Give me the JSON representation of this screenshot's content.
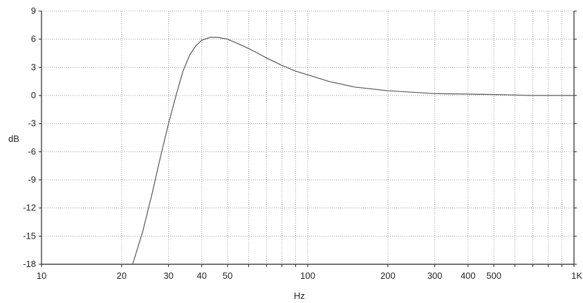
{
  "chart_data": {
    "type": "line",
    "xscale": "log",
    "xlabel": "Hz",
    "ylabel": "dB",
    "xlim": [
      10,
      1000
    ],
    "ylim": [
      -18,
      9
    ],
    "grid": true,
    "x_ticks": [
      {
        "value": 10,
        "label": "10"
      },
      {
        "value": 20,
        "label": "20"
      },
      {
        "value": 30,
        "label": "30"
      },
      {
        "value": 40,
        "label": "40"
      },
      {
        "value": 50,
        "label": "50"
      },
      {
        "value": 100,
        "label": "100"
      },
      {
        "value": 200,
        "label": "200"
      },
      {
        "value": 300,
        "label": "300"
      },
      {
        "value": 400,
        "label": "400"
      },
      {
        "value": 500,
        "label": "500"
      },
      {
        "value": 1000,
        "label": "1K"
      }
    ],
    "y_ticks": [
      {
        "value": 9,
        "label": "9"
      },
      {
        "value": 6,
        "label": "6"
      },
      {
        "value": 3,
        "label": "3"
      },
      {
        "value": 0,
        "label": "0"
      },
      {
        "value": -3,
        "label": "-3"
      },
      {
        "value": -6,
        "label": "-6"
      },
      {
        "value": -9,
        "label": "-9"
      },
      {
        "value": -12,
        "label": "-12"
      },
      {
        "value": -15,
        "label": "-15"
      },
      {
        "value": -18,
        "label": "-18"
      }
    ],
    "series": [
      {
        "color": "#555555",
        "x": [
          22,
          24,
          26,
          28,
          30,
          32,
          34,
          36,
          38,
          40,
          43,
          46,
          50,
          55,
          60,
          65,
          70,
          80,
          90,
          100,
          120,
          150,
          200,
          300,
          400,
          500,
          600,
          700,
          1000
        ],
        "y": [
          -18,
          -14.5,
          -10.5,
          -6.5,
          -3,
          0,
          2.6,
          4.3,
          5.3,
          5.9,
          6.2,
          6.2,
          6.0,
          5.5,
          5.0,
          4.5,
          4.0,
          3.2,
          2.6,
          2.2,
          1.5,
          0.9,
          0.5,
          0.2,
          0.15,
          0.1,
          0.05,
          0.0,
          0.0
        ]
      }
    ]
  }
}
